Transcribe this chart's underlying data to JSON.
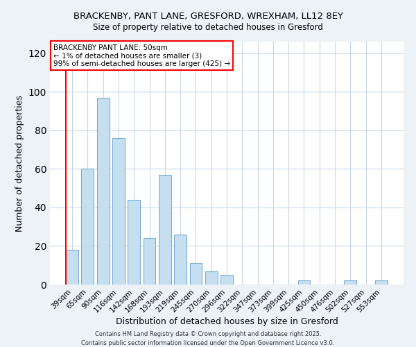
{
  "title1": "BRACKENBY, PANT LANE, GRESFORD, WREXHAM, LL12 8EY",
  "title2": "Size of property relative to detached houses in Gresford",
  "xlabel": "Distribution of detached houses by size in Gresford",
  "ylabel": "Number of detached properties",
  "bar_labels": [
    "39sqm",
    "65sqm",
    "90sqm",
    "116sqm",
    "142sqm",
    "168sqm",
    "193sqm",
    "219sqm",
    "245sqm",
    "270sqm",
    "296sqm",
    "322sqm",
    "347sqm",
    "373sqm",
    "399sqm",
    "425sqm",
    "450sqm",
    "476sqm",
    "502sqm",
    "527sqm",
    "553sqm"
  ],
  "bar_values": [
    18,
    60,
    97,
    76,
    44,
    24,
    57,
    26,
    11,
    7,
    5,
    0,
    0,
    0,
    0,
    2,
    0,
    0,
    2,
    0,
    2
  ],
  "bar_color": "#c6dff0",
  "bar_edge_color": "#7bafd4",
  "ylim": [
    0,
    126
  ],
  "yticks": [
    0,
    20,
    40,
    60,
    80,
    100,
    120
  ],
  "annotation_title": "BRACKENBY PANT LANE: 50sqm",
  "annotation_line1": "← 1% of detached houses are smaller (3)",
  "annotation_line2": "99% of semi-detached houses are larger (425) →",
  "footer1": "Contains HM Land Registry data © Crown copyright and database right 2025.",
  "footer2": "Contains public sector information licensed under the Open Government Licence v3.0.",
  "background_color": "#edf2f7",
  "plot_background": "#ffffff",
  "grid_color": "#c8d8e8"
}
